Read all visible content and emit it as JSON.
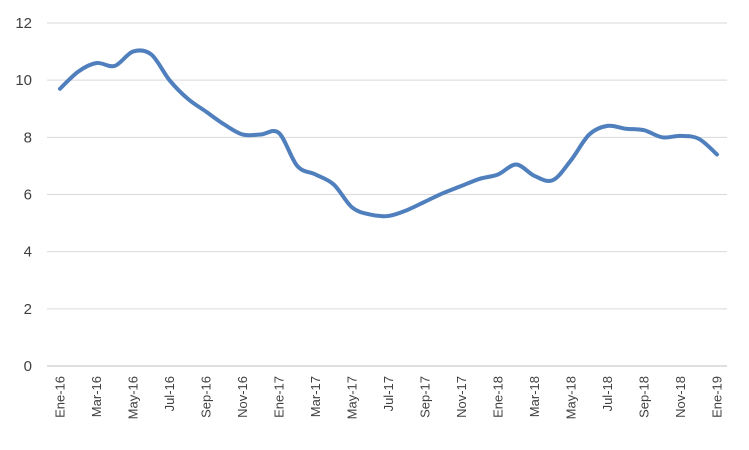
{
  "chart_data": {
    "type": "line",
    "title": "",
    "xlabel": "",
    "ylabel": "",
    "ylim": [
      0,
      12
    ],
    "yticks": [
      0,
      2,
      4,
      6,
      8,
      10,
      12
    ],
    "grid": true,
    "legend": "none",
    "categories": [
      "Ene-16",
      "Feb-16",
      "Mar-16",
      "Abr-16",
      "May-16",
      "Jun-16",
      "Jul-16",
      "Ago-16",
      "Sep-16",
      "Oct-16",
      "Nov-16",
      "Dic-16",
      "Ene-17",
      "Feb-17",
      "Mar-17",
      "Abr-17",
      "May-17",
      "Jun-17",
      "Jul-17",
      "Ago-17",
      "Sep-17",
      "Oct-17",
      "Nov-17",
      "Dic-17",
      "Ene-18",
      "Feb-18",
      "Mar-18",
      "Abr-18",
      "May-18",
      "Jun-18",
      "Jul-18",
      "Ago-18",
      "Sep-18",
      "Oct-18",
      "Nov-18",
      "Dic-18",
      "Ene-19"
    ],
    "tick_labels": [
      "Ene-16",
      "Mar-16",
      "May-16",
      "Jul-16",
      "Sep-16",
      "Nov-16",
      "Ene-17",
      "Mar-17",
      "May-17",
      "Jul-17",
      "Sep-17",
      "Nov-17",
      "Ene-18",
      "Mar-18",
      "May-18",
      "Jul-18",
      "Sep-18",
      "Nov-18",
      "Ene-19"
    ],
    "series": [
      {
        "color": "#4f7fbc",
        "values": [
          9.7,
          10.3,
          10.6,
          10.5,
          11.0,
          10.9,
          10.0,
          9.35,
          8.9,
          8.45,
          8.1,
          8.1,
          8.15,
          7.0,
          6.7,
          6.35,
          5.55,
          5.3,
          5.25,
          5.45,
          5.75,
          6.05,
          6.3,
          6.55,
          6.7,
          7.05,
          6.65,
          6.5,
          7.2,
          8.1,
          8.4,
          8.3,
          8.25,
          8.0,
          8.05,
          7.95,
          7.4
        ]
      }
    ]
  }
}
